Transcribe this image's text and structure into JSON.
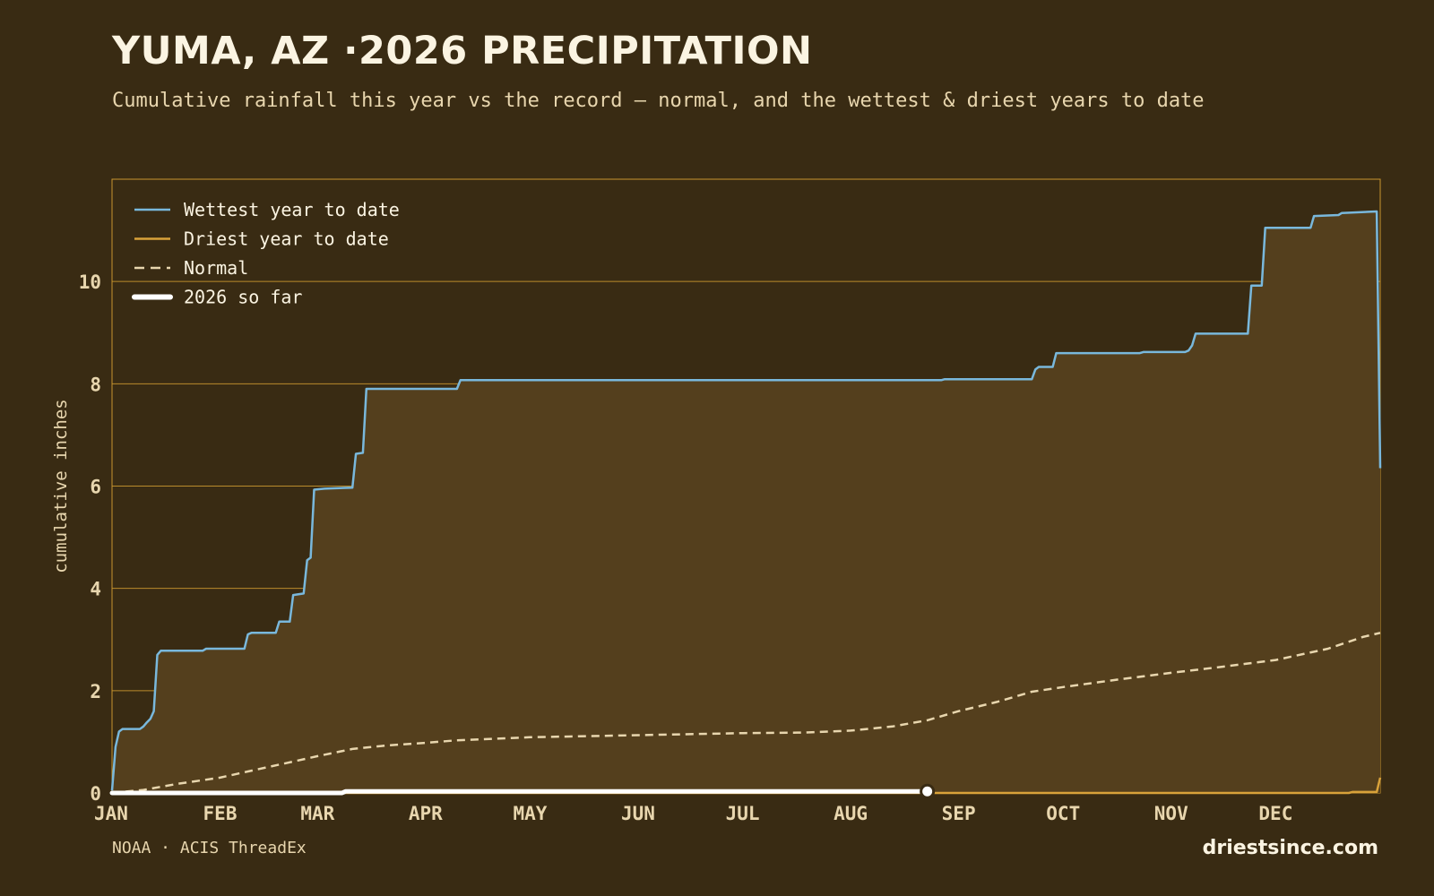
{
  "header": {
    "title": "YUMA, AZ ·2026 PRECIPITATION",
    "subtitle": "Cumulative rainfall this year vs the record — normal, and the wettest & driest years to date"
  },
  "footer": {
    "source": "NOAA · ACIS ThreadEx",
    "brand": "driestsince.com"
  },
  "colors": {
    "background": "#392b13",
    "fill": "#543f1d",
    "grid": "#c9962f",
    "wettest": "#79b8dc",
    "driest": "#d9a23a",
    "normal": "#e8d6ae",
    "current": "#ffffff",
    "axis_text": "#e8d6ae"
  },
  "chart_data": {
    "type": "line",
    "ylabel": "cumulative inches",
    "xlabel": "",
    "xlim": [
      1,
      365
    ],
    "ylim": [
      0,
      12
    ],
    "y_ticks": [
      0,
      2,
      4,
      6,
      8,
      10
    ],
    "x_ticks": [
      {
        "day": 1,
        "label": "JAN"
      },
      {
        "day": 32,
        "label": "FEB"
      },
      {
        "day": 60,
        "label": "MAR"
      },
      {
        "day": 91,
        "label": "APR"
      },
      {
        "day": 121,
        "label": "MAY"
      },
      {
        "day": 152,
        "label": "JUN"
      },
      {
        "day": 182,
        "label": "JUL"
      },
      {
        "day": 213,
        "label": "AUG"
      },
      {
        "day": 244,
        "label": "SEP"
      },
      {
        "day": 274,
        "label": "OCT"
      },
      {
        "day": 305,
        "label": "NOV"
      },
      {
        "day": 335,
        "label": "DEC"
      }
    ],
    "grid": "horizontal",
    "legend_position": "top-left",
    "series": [
      {
        "name": "Wettest year to date",
        "style": "solid",
        "color": "#79b8dc",
        "points": [
          [
            1,
            0.05
          ],
          [
            2,
            0.9
          ],
          [
            3,
            1.2
          ],
          [
            4,
            1.25
          ],
          [
            9,
            1.25
          ],
          [
            10,
            1.3
          ],
          [
            11,
            1.38
          ],
          [
            12,
            1.45
          ],
          [
            13,
            1.6
          ],
          [
            14,
            2.7
          ],
          [
            15,
            2.78
          ],
          [
            27,
            2.78
          ],
          [
            28,
            2.82
          ],
          [
            39,
            2.82
          ],
          [
            40,
            3.1
          ],
          [
            41,
            3.13
          ],
          [
            48,
            3.13
          ],
          [
            49,
            3.35
          ],
          [
            52,
            3.35
          ],
          [
            53,
            3.87
          ],
          [
            56,
            3.9
          ],
          [
            57,
            4.55
          ],
          [
            58,
            4.6
          ],
          [
            59,
            5.93
          ],
          [
            62,
            5.95
          ],
          [
            70,
            5.97
          ],
          [
            71,
            6.63
          ],
          [
            73,
            6.65
          ],
          [
            74,
            7.9
          ],
          [
            100,
            7.9
          ],
          [
            101,
            8.07
          ],
          [
            239,
            8.07
          ],
          [
            240,
            8.09
          ],
          [
            265,
            8.09
          ],
          [
            266,
            8.28
          ],
          [
            267,
            8.33
          ],
          [
            271,
            8.33
          ],
          [
            272,
            8.6
          ],
          [
            296,
            8.6
          ],
          [
            297,
            8.62
          ],
          [
            309,
            8.62
          ],
          [
            310,
            8.65
          ],
          [
            311,
            8.75
          ],
          [
            312,
            8.98
          ],
          [
            327,
            8.98
          ],
          [
            328,
            9.92
          ],
          [
            331,
            9.92
          ],
          [
            332,
            11.05
          ],
          [
            345,
            11.05
          ],
          [
            346,
            11.28
          ],
          [
            353,
            11.3
          ],
          [
            354,
            11.34
          ],
          [
            364,
            11.37
          ],
          [
            365,
            6.35
          ]
        ]
      },
      {
        "name": "Driest year to date",
        "style": "solid",
        "color": "#d9a23a",
        "points": [
          [
            1,
            0
          ],
          [
            356,
            0
          ],
          [
            357,
            0.02
          ],
          [
            364,
            0.02
          ],
          [
            365,
            0.3
          ]
        ]
      },
      {
        "name": "Normal",
        "style": "dashed",
        "color": "#e8d6ae",
        "points": [
          [
            1,
            0
          ],
          [
            10,
            0.06
          ],
          [
            20,
            0.18
          ],
          [
            32,
            0.3
          ],
          [
            40,
            0.42
          ],
          [
            50,
            0.57
          ],
          [
            60,
            0.72
          ],
          [
            70,
            0.86
          ],
          [
            80,
            0.93
          ],
          [
            91,
            0.98
          ],
          [
            100,
            1.03
          ],
          [
            121,
            1.09
          ],
          [
            152,
            1.13
          ],
          [
            182,
            1.17
          ],
          [
            200,
            1.18
          ],
          [
            213,
            1.22
          ],
          [
            225,
            1.3
          ],
          [
            235,
            1.42
          ],
          [
            244,
            1.6
          ],
          [
            255,
            1.78
          ],
          [
            265,
            1.98
          ],
          [
            274,
            2.07
          ],
          [
            290,
            2.22
          ],
          [
            305,
            2.35
          ],
          [
            320,
            2.47
          ],
          [
            335,
            2.6
          ],
          [
            350,
            2.82
          ],
          [
            360,
            3.05
          ],
          [
            365,
            3.13
          ]
        ]
      },
      {
        "name": "2026 so far",
        "style": "thick",
        "color": "#ffffff",
        "points": [
          [
            1,
            0
          ],
          [
            67,
            0
          ],
          [
            68,
            0.03
          ],
          [
            235,
            0.03
          ]
        ],
        "end_marker": true
      }
    ]
  }
}
